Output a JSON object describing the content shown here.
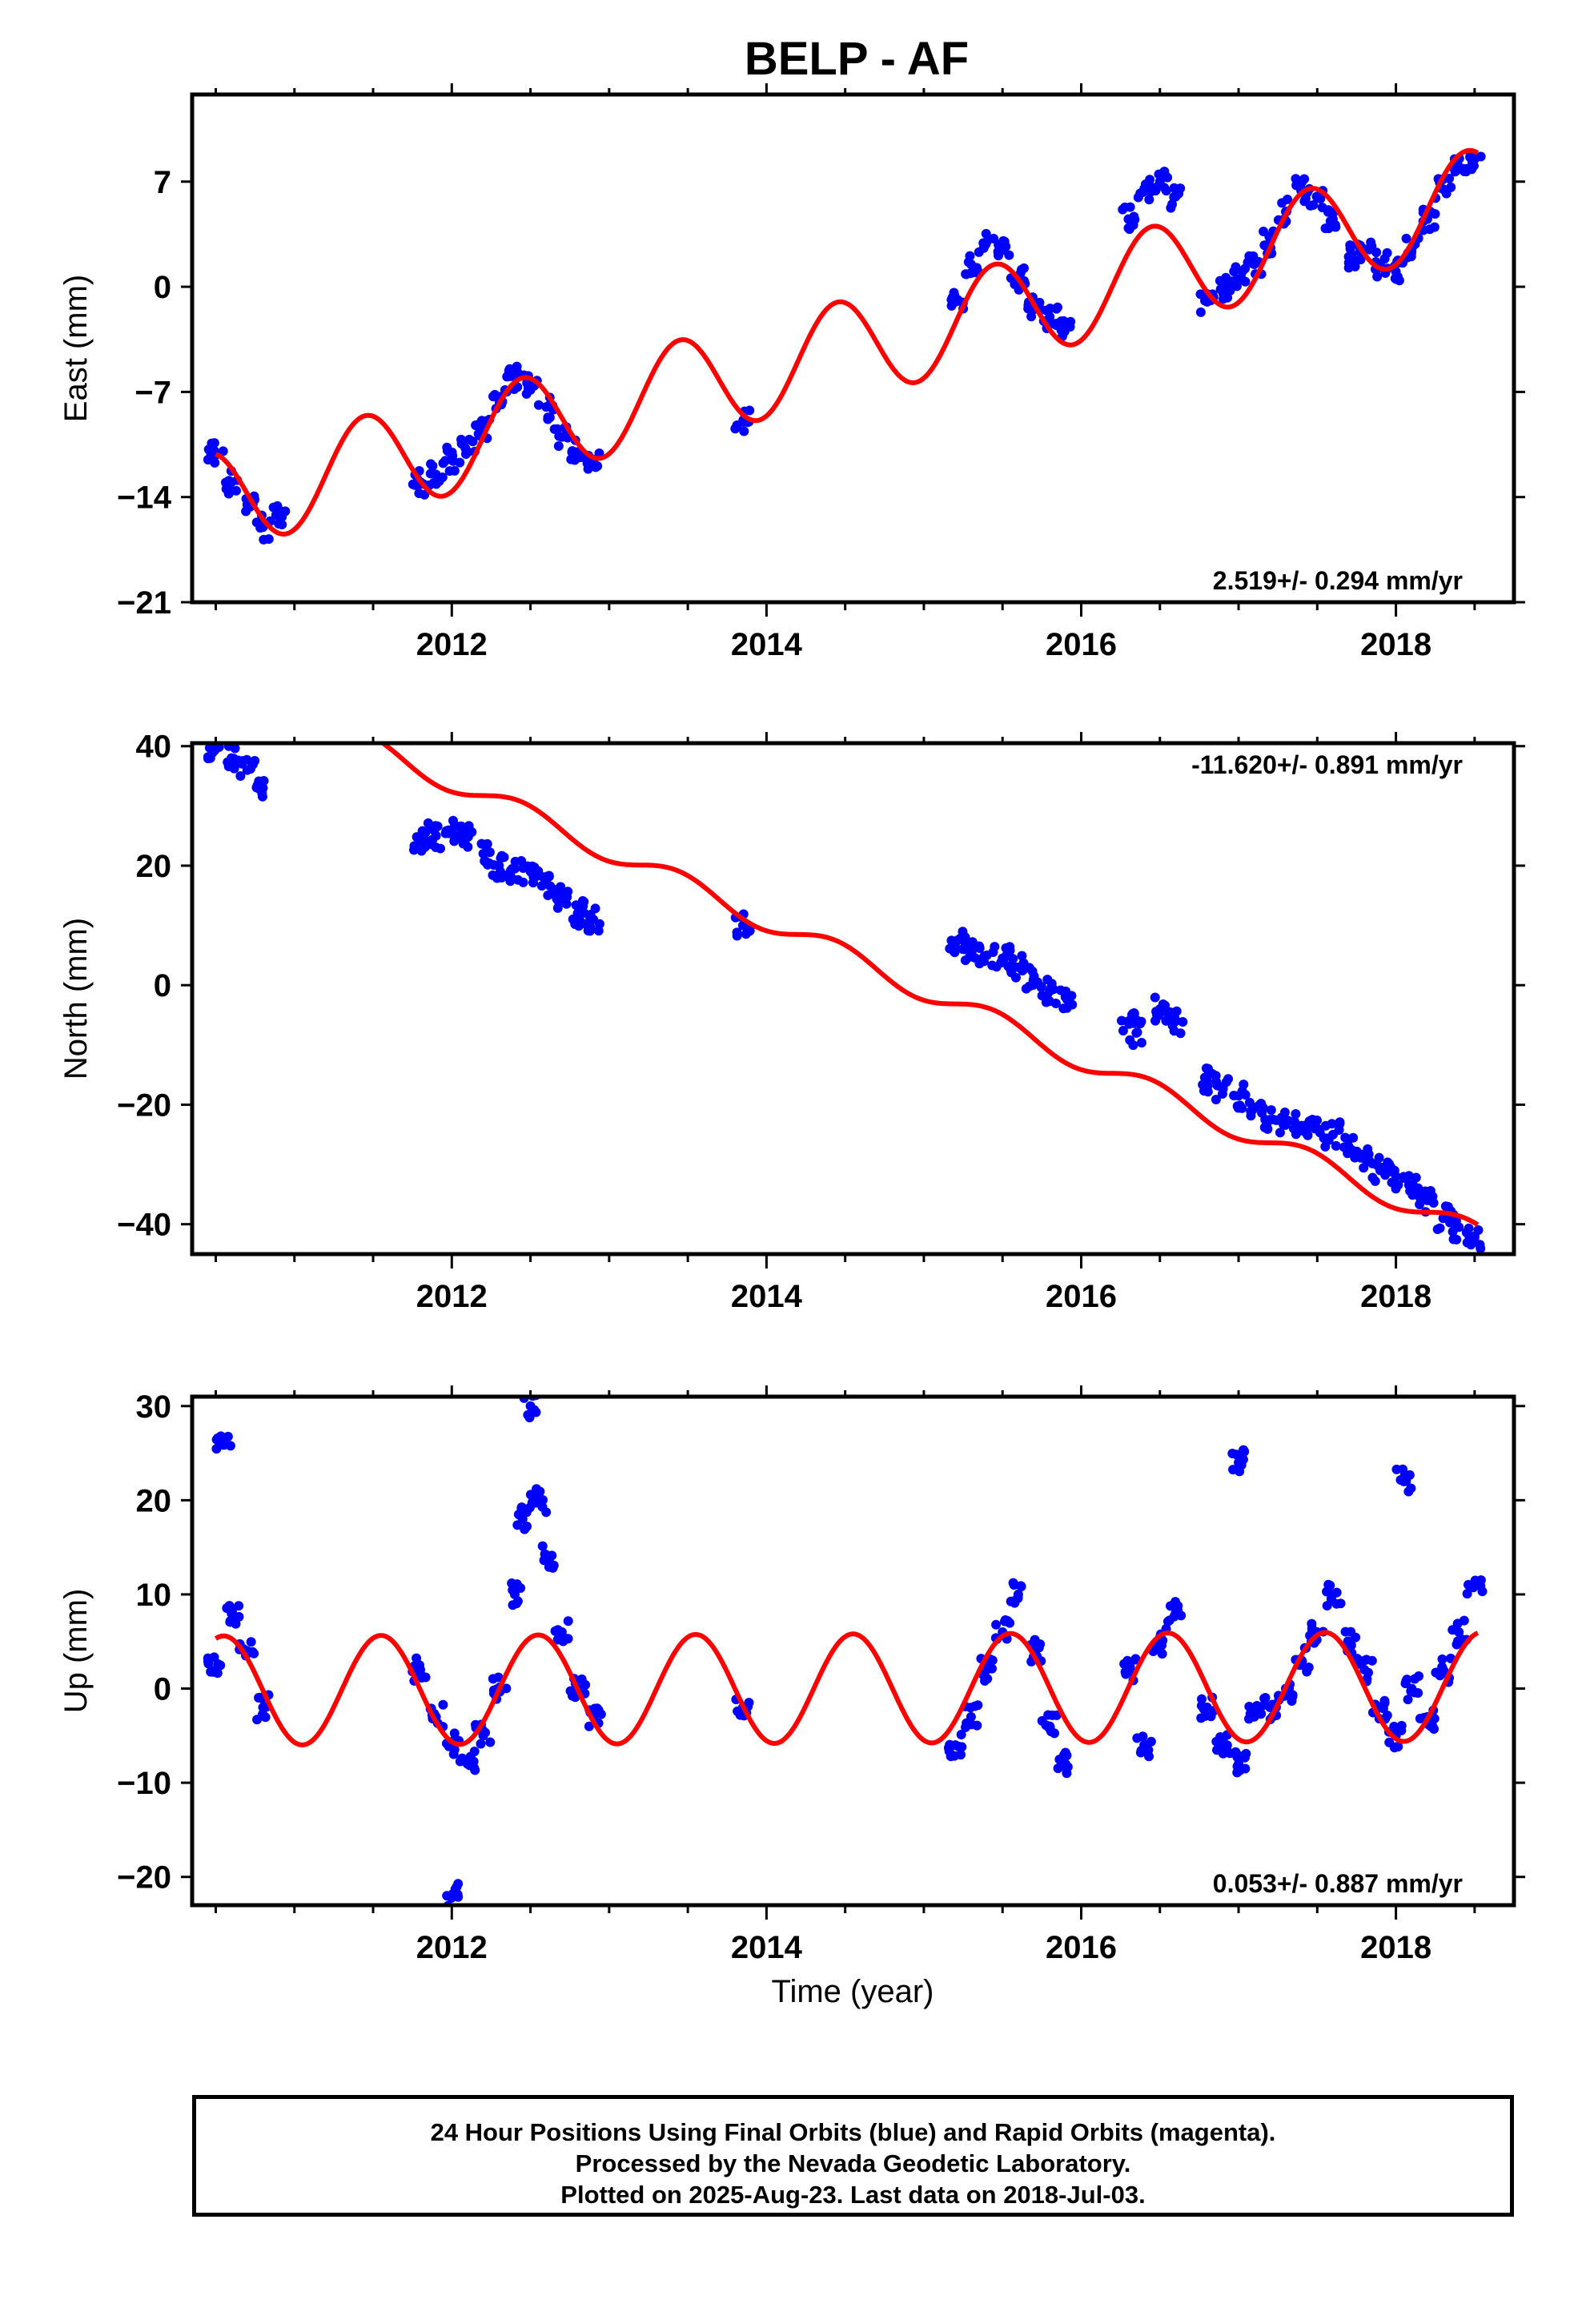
{
  "title": "BELP - AF",
  "x_axis_label": "Time (year)",
  "caption": [
    "24 Hour Positions Using Final Orbits (blue) and Rapid Orbits (magenta).",
    "Processed by the Nevada Geodetic Laboratory.",
    "Plotted on 2025-Aug-23. Last data on 2018-Jul-03."
  ],
  "colors": {
    "data_points": "#0000ff",
    "model_curve": "#ff0000",
    "frame": "#000000"
  },
  "chart_data": [
    {
      "type": "scatter",
      "ylabel": "East (mm)",
      "rate": "2.519+/- 0.294 mm/yr",
      "rate_position": "bottom-right",
      "xlim": [
        2010.35,
        2018.75
      ],
      "ylim": [
        -21,
        12.8
      ],
      "yticks": [
        7,
        0,
        -7,
        -14,
        -21
      ],
      "ytick_labels": [
        "7",
        "0",
        "−7",
        "−14",
        "−21"
      ],
      "xticks": [
        2012,
        2014,
        2016,
        2018
      ],
      "xtick_labels": [
        "2012",
        "2014",
        "2016",
        "2018"
      ],
      "model": {
        "slope": 2.519,
        "t0": 2014.5,
        "offset": -4.2,
        "amplitude": 3.3,
        "phase_year": 0.45
      },
      "series": [
        {
          "values": [
            [
              2010.5,
              -11.2
            ],
            [
              2010.6,
              -13.0
            ],
            [
              2010.7,
              -14.5
            ],
            [
              2010.8,
              -16.0
            ],
            [
              2010.9,
              -15.2
            ],
            [
              2011.8,
              -13.0
            ],
            [
              2011.9,
              -12.5
            ],
            [
              2012.0,
              -11.5
            ],
            [
              2012.1,
              -11.0
            ],
            [
              2012.2,
              -9.5
            ],
            [
              2012.3,
              -7.5
            ],
            [
              2012.4,
              -6.0
            ],
            [
              2012.5,
              -6.5
            ],
            [
              2012.6,
              -8.0
            ],
            [
              2012.7,
              -10.0
            ],
            [
              2012.8,
              -11.0
            ],
            [
              2012.9,
              -11.5
            ],
            [
              2013.85,
              -9.0
            ],
            [
              2015.2,
              -1.0
            ],
            [
              2015.3,
              1.5
            ],
            [
              2015.4,
              3.0
            ],
            [
              2015.5,
              2.5
            ],
            [
              2015.6,
              0.5
            ],
            [
              2015.7,
              -1.5
            ],
            [
              2015.8,
              -2.0
            ],
            [
              2015.9,
              -2.5
            ],
            [
              2016.3,
              4.5
            ],
            [
              2016.4,
              6.5
            ],
            [
              2016.5,
              7.0
            ],
            [
              2016.6,
              6.0
            ],
            [
              2016.8,
              -1.0
            ],
            [
              2016.9,
              0.0
            ],
            [
              2017.0,
              0.5
            ],
            [
              2017.1,
              1.5
            ],
            [
              2017.2,
              3.0
            ],
            [
              2017.3,
              5.0
            ],
            [
              2017.4,
              6.5
            ],
            [
              2017.5,
              6.0
            ],
            [
              2017.6,
              4.5
            ],
            [
              2017.7,
              2.0
            ],
            [
              2017.8,
              2.5
            ],
            [
              2017.9,
              1.5
            ],
            [
              2018.0,
              1.0
            ],
            [
              2018.1,
              2.5
            ],
            [
              2018.2,
              4.5
            ],
            [
              2018.3,
              6.5
            ],
            [
              2018.4,
              8.0
            ],
            [
              2018.5,
              8.5
            ]
          ]
        }
      ]
    },
    {
      "type": "scatter",
      "ylabel": "North (mm)",
      "rate": "-11.620+/- 0.891 mm/yr",
      "rate_position": "top-right",
      "xlim": [
        2010.35,
        2018.75
      ],
      "ylim": [
        -45,
        40.5
      ],
      "yticks": [
        40,
        20,
        0,
        -20,
        -40
      ],
      "ytick_labels": [
        "40",
        "20",
        "0",
        "−20",
        "−40"
      ],
      "xticks": [
        2012,
        2014,
        2016,
        2018
      ],
      "xtick_labels": [
        "2012",
        "2014",
        "2016",
        "2018"
      ],
      "model": {
        "slope": -11.62,
        "t0": 2014.5,
        "offset": 5.0,
        "amplitude": 1.8,
        "phase_year": 0.45
      },
      "series": [
        {
          "values": [
            [
              2010.5,
              40.0
            ],
            [
              2010.6,
              38.0
            ],
            [
              2010.7,
              36.0
            ],
            [
              2010.8,
              33.0
            ],
            [
              2011.8,
              24.0
            ],
            [
              2011.9,
              25.0
            ],
            [
              2012.0,
              25.5
            ],
            [
              2012.1,
              25.0
            ],
            [
              2012.2,
              22.0
            ],
            [
              2012.3,
              20.0
            ],
            [
              2012.4,
              19.5
            ],
            [
              2012.5,
              19.0
            ],
            [
              2012.6,
              17.0
            ],
            [
              2012.7,
              15.0
            ],
            [
              2012.8,
              12.0
            ],
            [
              2012.9,
              11.0
            ],
            [
              2013.85,
              10.0
            ],
            [
              2015.2,
              7.0
            ],
            [
              2015.3,
              6.0
            ],
            [
              2015.4,
              5.0
            ],
            [
              2015.5,
              4.5
            ],
            [
              2015.6,
              3.0
            ],
            [
              2015.7,
              1.5
            ],
            [
              2015.8,
              -1.0
            ],
            [
              2015.9,
              -2.0
            ],
            [
              2016.3,
              -6.0
            ],
            [
              2016.35,
              -8.0
            ],
            [
              2016.5,
              -4.0
            ],
            [
              2016.6,
              -6.0
            ],
            [
              2016.8,
              -16.0
            ],
            [
              2016.9,
              -17.0
            ],
            [
              2017.0,
              -18.5
            ],
            [
              2017.1,
              -20.5
            ],
            [
              2017.2,
              -22.5
            ],
            [
              2017.3,
              -23.0
            ],
            [
              2017.4,
              -23.5
            ],
            [
              2017.5,
              -24.0
            ],
            [
              2017.6,
              -25.0
            ],
            [
              2017.7,
              -27.0
            ],
            [
              2017.8,
              -29.0
            ],
            [
              2017.9,
              -31.0
            ],
            [
              2018.0,
              -32.0
            ],
            [
              2018.1,
              -34.0
            ],
            [
              2018.2,
              -36.0
            ],
            [
              2018.3,
              -39.0
            ],
            [
              2018.4,
              -40.5
            ],
            [
              2018.5,
              -42.0
            ]
          ]
        }
      ]
    },
    {
      "type": "scatter",
      "ylabel": "Up (mm)",
      "rate": "0.053+/- 0.887 mm/yr",
      "rate_position": "bottom-right",
      "xlim": [
        2010.35,
        2018.75
      ],
      "ylim": [
        -23,
        31
      ],
      "yticks": [
        30,
        20,
        10,
        0,
        -10,
        -20
      ],
      "ytick_labels": [
        "30",
        "20",
        "10",
        "0",
        "−10",
        "−20"
      ],
      "xticks": [
        2012,
        2014,
        2016,
        2018
      ],
      "xtick_labels": [
        "2012",
        "2014",
        "2016",
        "2018"
      ],
      "model": {
        "slope": 0.053,
        "t0": 2014.5,
        "offset": 0.0,
        "amplitude": 5.8,
        "phase_year": 0.55
      },
      "series": [
        {
          "values": [
            [
              2010.5,
              2.0
            ],
            [
              2010.55,
              26.0
            ],
            [
              2010.6,
              8.0
            ],
            [
              2010.7,
              4.0
            ],
            [
              2010.8,
              -2.0
            ],
            [
              2011.8,
              2.0
            ],
            [
              2011.9,
              -3.0
            ],
            [
              2012.0,
              -6.0
            ],
            [
              2012.1,
              -8.0
            ],
            [
              2012.2,
              -5.0
            ],
            [
              2012.3,
              0.0
            ],
            [
              2012.4,
              10.0
            ],
            [
              2012.45,
              18.0
            ],
            [
              2012.5,
              30.0
            ],
            [
              2012.55,
              20.0
            ],
            [
              2012.6,
              14.0
            ],
            [
              2012.7,
              6.0
            ],
            [
              2012.8,
              0.0
            ],
            [
              2012.9,
              -3.0
            ],
            [
              2012.0,
              -22.0
            ],
            [
              2013.85,
              -2.0
            ],
            [
              2015.2,
              -6.0
            ],
            [
              2015.3,
              -3.0
            ],
            [
              2015.4,
              2.0
            ],
            [
              2015.5,
              6.0
            ],
            [
              2015.6,
              10.0
            ],
            [
              2015.7,
              4.0
            ],
            [
              2015.8,
              -4.0
            ],
            [
              2015.9,
              -8.0
            ],
            [
              2016.3,
              2.0
            ],
            [
              2016.4,
              -6.0
            ],
            [
              2016.5,
              5.0
            ],
            [
              2016.6,
              8.0
            ],
            [
              2016.8,
              -2.0
            ],
            [
              2016.9,
              -6.0
            ],
            [
              2017.0,
              -8.0
            ],
            [
              2017.0,
              24.0
            ],
            [
              2017.1,
              -3.0
            ],
            [
              2017.2,
              -2.0
            ],
            [
              2017.3,
              0.0
            ],
            [
              2017.4,
              3.0
            ],
            [
              2017.5,
              6.0
            ],
            [
              2017.6,
              10.0
            ],
            [
              2017.7,
              5.0
            ],
            [
              2017.8,
              2.0
            ],
            [
              2017.9,
              -2.0
            ],
            [
              2018.0,
              -5.0
            ],
            [
              2018.05,
              22.0
            ],
            [
              2018.1,
              0.0
            ],
            [
              2018.2,
              -3.0
            ],
            [
              2018.3,
              2.0
            ],
            [
              2018.4,
              6.0
            ],
            [
              2018.5,
              11.0
            ]
          ]
        }
      ]
    }
  ]
}
